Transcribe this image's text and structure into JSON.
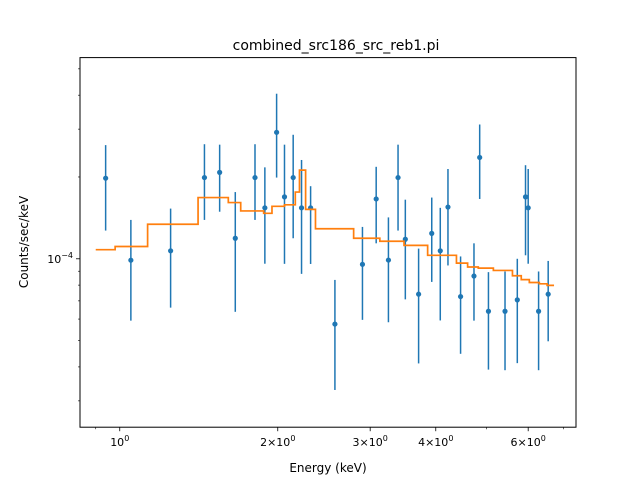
{
  "chart_data": {
    "type": "scatter",
    "title": "combined_src186_src_reb1.pi",
    "xlabel": "Energy (keV)",
    "ylabel": "Counts/sec/keV",
    "xscale": "log",
    "yscale": "log",
    "xlim": [
      0.84,
      7.4
    ],
    "ylim": [
      2.4e-05,
      0.00055
    ],
    "x_ticks": [
      {
        "value": 1,
        "label": "10^0"
      },
      {
        "value": 2,
        "label": "2×10^0"
      },
      {
        "value": 3,
        "label": "3×10^0"
      },
      {
        "value": 4,
        "label": "4×10^0"
      },
      {
        "value": 6,
        "label": "6×10^0"
      }
    ],
    "y_ticks": [
      {
        "value": 0.0001,
        "label": "10^-4"
      }
    ],
    "colors": {
      "data": "#1f77b4",
      "model": "#ff7f0e"
    },
    "series": [
      {
        "kind": "data-with-errorbars",
        "points": [
          {
            "x": 0.94,
            "y": 0.000198,
            "lo": 0.000127,
            "hi": 0.000262
          },
          {
            "x": 1.05,
            "y": 9.88e-05,
            "lo": 5.92e-05,
            "hi": 0.000139
          },
          {
            "x": 1.25,
            "y": 0.000107,
            "lo": 6.61e-05,
            "hi": 0.000153
          },
          {
            "x": 1.45,
            "y": 0.000199,
            "lo": 0.000139,
            "hi": 0.000264
          },
          {
            "x": 1.55,
            "y": 0.000208,
            "lo": 0.000149,
            "hi": 0.000263
          },
          {
            "x": 1.66,
            "y": 0.000119,
            "lo": 6.38e-05,
            "hi": 0.000176
          },
          {
            "x": 1.81,
            "y": 0.000199,
            "lo": 0.000139,
            "hi": 0.000264
          },
          {
            "x": 1.89,
            "y": 0.000154,
            "lo": 9.59e-05,
            "hi": 0.000217
          },
          {
            "x": 1.99,
            "y": 0.000292,
            "lo": 0.000199,
            "hi": 0.000405
          },
          {
            "x": 2.06,
            "y": 0.000169,
            "lo": 9.58e-05,
            "hi": 0.000263
          },
          {
            "x": 2.14,
            "y": 0.000199,
            "lo": 0.000119,
            "hi": 0.000286
          },
          {
            "x": 2.22,
            "y": 0.000154,
            "lo": 8.8e-05,
            "hi": 0.000231
          },
          {
            "x": 2.31,
            "y": 0.000154,
            "lo": 9.57e-05,
            "hi": 0.000185
          },
          {
            "x": 2.57,
            "y": 5.75e-05,
            "lo": 3.29e-05,
            "hi": 8.36e-05
          },
          {
            "x": 2.9,
            "y": 9.54e-05,
            "lo": 5.96e-05,
            "hi": 0.000131
          },
          {
            "x": 3.08,
            "y": 0.000166,
            "lo": 0.000114,
            "hi": 0.000218
          },
          {
            "x": 3.25,
            "y": 9.89e-05,
            "lo": 5.84e-05,
            "hi": 0.000142
          },
          {
            "x": 3.39,
            "y": 0.000199,
            "lo": 0.000127,
            "hi": 0.000263
          },
          {
            "x": 3.5,
            "y": 0.000118,
            "lo": 7.09e-05,
            "hi": 0.000165
          },
          {
            "x": 3.71,
            "y": 7.41e-05,
            "lo": 4.12e-05,
            "hi": 0.000109
          },
          {
            "x": 3.93,
            "y": 0.000124,
            "lo": 8.22e-05,
            "hi": 0.000168
          },
          {
            "x": 4.08,
            "y": 0.000107,
            "lo": 5.93e-05,
            "hi": 0.000154
          },
          {
            "x": 4.22,
            "y": 0.000155,
            "lo": 9.45e-05,
            "hi": 0.000214
          },
          {
            "x": 4.46,
            "y": 7.26e-05,
            "lo": 4.47e-05,
            "hi": 0.000102
          },
          {
            "x": 4.73,
            "y": 8.64e-05,
            "lo": 5.92e-05,
            "hi": 0.000114
          },
          {
            "x": 4.85,
            "y": 0.000236,
            "lo": 0.000166,
            "hi": 0.000312
          },
          {
            "x": 5.04,
            "y": 6.41e-05,
            "lo": 3.91e-05,
            "hi": 8.93e-05
          },
          {
            "x": 5.42,
            "y": 6.41e-05,
            "lo": 3.89e-05,
            "hi": 8.98e-05
          },
          {
            "x": 5.72,
            "y": 7.06e-05,
            "lo": 4.13e-05,
            "hi": 0.0001
          },
          {
            "x": 5.93,
            "y": 0.000169,
            "lo": 0.000103,
            "hi": 0.000221
          },
          {
            "x": 6.0,
            "y": 0.000154,
            "lo": 9.59e-05,
            "hi": 0.000214
          },
          {
            "x": 6.28,
            "y": 6.41e-05,
            "lo": 3.89e-05,
            "hi": 8.98e-05
          },
          {
            "x": 6.55,
            "y": 7.41e-05,
            "lo": 4.97e-05,
            "hi": 9.82e-05
          }
        ]
      },
      {
        "kind": "model-step",
        "edges": [
          0.9,
          0.98,
          1.13,
          1.41,
          1.61,
          1.7,
          1.88,
          1.95,
          2.06,
          2.16,
          2.2,
          2.26,
          2.36,
          2.79,
          3.13,
          3.48,
          3.86,
          4.38,
          4.6,
          4.82,
          5.15,
          5.6,
          5.82,
          6.03,
          6.3,
          6.52,
          6.72
        ],
        "values": [
          0.000108,
          0.000111,
          0.000134,
          0.000168,
          0.000161,
          0.00015,
          0.000147,
          0.000156,
          0.000158,
          0.000176,
          0.000212,
          0.000152,
          0.000129,
          0.000119,
          0.000116,
          0.000112,
          0.000103,
          9.64e-05,
          9.33e-05,
          9.24e-05,
          9.06e-05,
          8.66e-05,
          8.38e-05,
          8.18e-05,
          8.09e-05,
          7.98e-05
        ]
      }
    ]
  }
}
